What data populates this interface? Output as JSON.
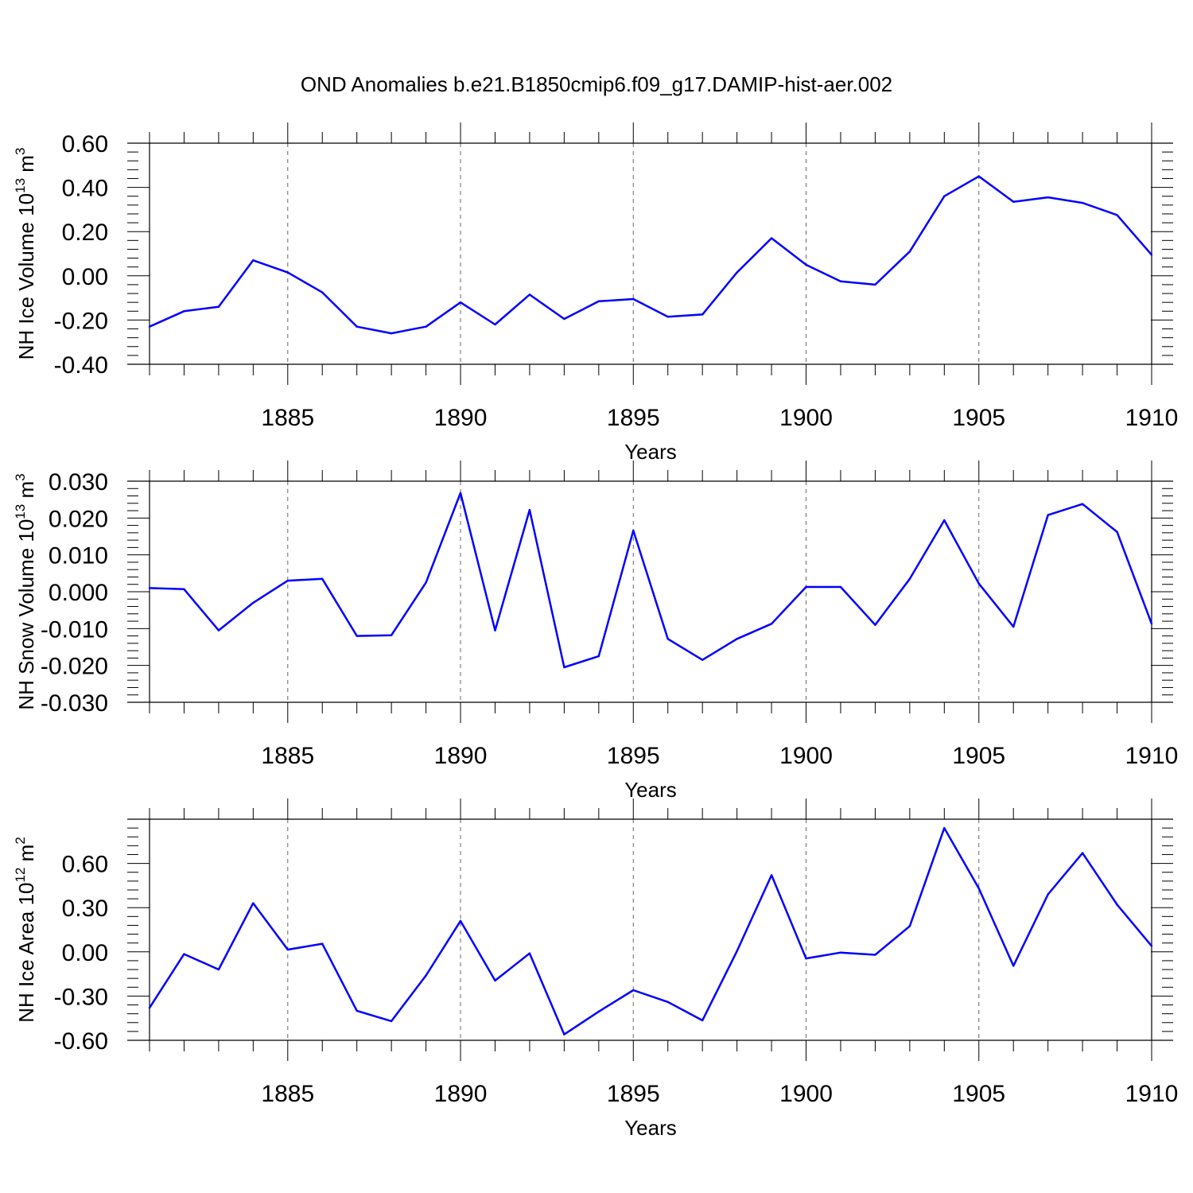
{
  "title": "OND Anomalies b.e21.B1850cmip6.f09_g17.DAMIP-hist-aer.002",
  "line_color": "#0000ff",
  "chart_data": [
    {
      "type": "line",
      "name": "ice-volume",
      "xlabel": "Years",
      "ylabel": "NH Ice Volume 10",
      "ylabel_exp": "13",
      "ylabel_unit": "m",
      "ylabel_unit_exp": "3",
      "xlim": [
        1881,
        1910
      ],
      "ylim": [
        -0.4,
        0.6
      ],
      "yticks": [
        -0.4,
        -0.2,
        0.0,
        0.2,
        0.4,
        0.6
      ],
      "ytick_labels": [
        "-0.40",
        "-0.20",
        "0.00",
        "0.20",
        "0.40",
        "0.60"
      ],
      "xticks": [
        1885,
        1890,
        1895,
        1900,
        1905,
        1910
      ],
      "xtick_labels": [
        "1885",
        "1890",
        "1895",
        "1900",
        "1905",
        "1910"
      ],
      "x": [
        1881,
        1882,
        1883,
        1884,
        1885,
        1886,
        1887,
        1888,
        1889,
        1890,
        1891,
        1892,
        1893,
        1894,
        1895,
        1896,
        1897,
        1898,
        1899,
        1900,
        1901,
        1902,
        1903,
        1904,
        1905,
        1906,
        1907,
        1908,
        1909,
        1910
      ],
      "values": [
        -0.23,
        -0.16,
        -0.14,
        0.07,
        0.015,
        -0.075,
        -0.23,
        -0.26,
        -0.23,
        -0.12,
        -0.22,
        -0.085,
        -0.195,
        -0.115,
        -0.105,
        -0.185,
        -0.175,
        0.015,
        0.17,
        0.05,
        -0.025,
        -0.04,
        0.11,
        0.36,
        0.45,
        0.335,
        0.355,
        0.33,
        0.275,
        0.095
      ]
    },
    {
      "type": "line",
      "name": "snow-volume",
      "xlabel": "Years",
      "ylabel": "NH Snow Volume 10",
      "ylabel_exp": "13",
      "ylabel_unit": "m",
      "ylabel_unit_exp": "3",
      "xlim": [
        1881,
        1910
      ],
      "ylim": [
        -0.03,
        0.03
      ],
      "yticks": [
        -0.03,
        -0.02,
        -0.01,
        0.0,
        0.01,
        0.02,
        0.03
      ],
      "ytick_labels": [
        "-0.030",
        "-0.020",
        "-0.010",
        "0.000",
        "0.010",
        "0.020",
        "0.030"
      ],
      "xticks": [
        1885,
        1890,
        1895,
        1900,
        1905,
        1910
      ],
      "xtick_labels": [
        "1885",
        "1890",
        "1895",
        "1900",
        "1905",
        "1910"
      ],
      "x": [
        1881,
        1882,
        1883,
        1884,
        1885,
        1886,
        1887,
        1888,
        1889,
        1890,
        1891,
        1892,
        1893,
        1894,
        1895,
        1896,
        1897,
        1898,
        1899,
        1900,
        1901,
        1902,
        1903,
        1904,
        1905,
        1906,
        1907,
        1908,
        1909,
        1910
      ],
      "values": [
        0.001,
        0.0007,
        -0.0105,
        -0.003,
        0.003,
        0.0035,
        -0.012,
        -0.0118,
        0.0025,
        0.0268,
        -0.0105,
        0.0222,
        -0.0205,
        -0.0175,
        0.0166,
        -0.0128,
        -0.0185,
        -0.0128,
        -0.0087,
        0.0013,
        0.0013,
        -0.009,
        0.0035,
        0.0194,
        0.0022,
        -0.0095,
        0.0208,
        0.0238,
        0.0162,
        -0.0087
      ]
    },
    {
      "type": "line",
      "name": "ice-area",
      "xlabel": "Years",
      "ylabel": "NH Ice Area 10",
      "ylabel_exp": "12",
      "ylabel_unit": "m",
      "ylabel_unit_exp": "2",
      "xlim": [
        1881,
        1910
      ],
      "ylim": [
        -0.6,
        0.9
      ],
      "yticks": [
        -0.6,
        -0.3,
        0.0,
        0.3,
        0.6
      ],
      "ytick_labels": [
        "-0.60",
        "-0.30",
        "0.00",
        "0.30",
        "0.60"
      ],
      "xticks": [
        1885,
        1890,
        1895,
        1900,
        1905,
        1910
      ],
      "xtick_labels": [
        "1885",
        "1890",
        "1895",
        "1900",
        "1905",
        "1910"
      ],
      "x": [
        1881,
        1882,
        1883,
        1884,
        1885,
        1886,
        1887,
        1888,
        1889,
        1890,
        1891,
        1892,
        1893,
        1894,
        1895,
        1896,
        1897,
        1898,
        1899,
        1900,
        1901,
        1902,
        1903,
        1904,
        1905,
        1906,
        1907,
        1908,
        1909,
        1910
      ],
      "values": [
        -0.38,
        -0.015,
        -0.12,
        0.33,
        0.015,
        0.055,
        -0.4,
        -0.47,
        -0.16,
        0.21,
        -0.195,
        -0.01,
        -0.56,
        -0.405,
        -0.26,
        -0.34,
        -0.465,
        0.005,
        0.52,
        -0.045,
        -0.005,
        -0.02,
        0.175,
        0.84,
        0.43,
        -0.095,
        0.39,
        0.67,
        0.32,
        0.04
      ]
    }
  ]
}
